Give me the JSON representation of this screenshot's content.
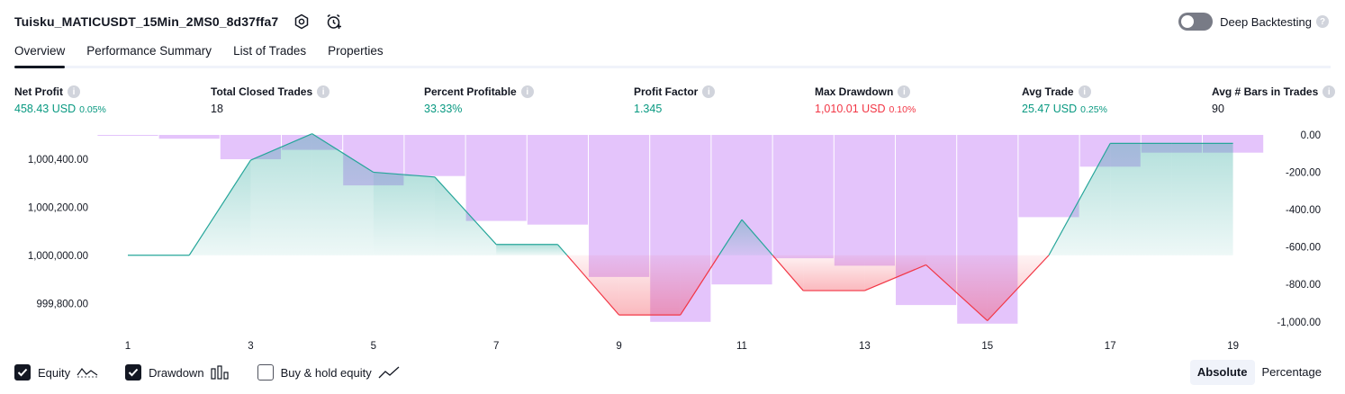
{
  "header": {
    "strategy_title": "Tuisku_MATICUSDT_15Min_2MS0_8d37ffa7",
    "settings_icon": "gear-icon",
    "alert_icon": "alarm-clock-plus-icon"
  },
  "deep_backtesting": {
    "label": "Deep Backtesting",
    "enabled": false
  },
  "tabs": [
    {
      "label": "Overview",
      "active": true
    },
    {
      "label": "Performance Summary",
      "active": false
    },
    {
      "label": "List of Trades",
      "active": false
    },
    {
      "label": "Properties",
      "active": false
    }
  ],
  "metrics": {
    "net_profit": {
      "label": "Net Profit",
      "value": "458.43 USD",
      "pct": "0.05%"
    },
    "total_closed_trades": {
      "label": "Total Closed Trades",
      "value": "18"
    },
    "percent_profitable": {
      "label": "Percent Profitable",
      "value": "33.33%"
    },
    "profit_factor": {
      "label": "Profit Factor",
      "value": "1.345"
    },
    "max_drawdown": {
      "label": "Max Drawdown",
      "value": "1,010.01 USD",
      "pct": "0.10%"
    },
    "avg_trade": {
      "label": "Avg Trade",
      "value": "25.47 USD",
      "pct": "0.25%"
    },
    "avg_bars": {
      "label": "Avg # Bars in Trades",
      "value": "90"
    }
  },
  "chart_data": {
    "type": "line",
    "x": [
      1,
      2,
      3,
      4,
      5,
      6,
      7,
      8,
      9,
      10,
      11,
      12,
      13,
      14,
      15,
      16,
      17,
      18,
      19
    ],
    "x_ticks": [
      "1",
      "3",
      "5",
      "7",
      "9",
      "11",
      "13",
      "15",
      "17",
      "19"
    ],
    "left_axis": {
      "ylim": [
        999700,
        1000500
      ],
      "ticks": [
        "1,000,400.00",
        "1,000,200.00",
        "1,000,000.00",
        "999,800.00"
      ],
      "tick_values": [
        1000400,
        1000200,
        1000000,
        999800
      ]
    },
    "right_axis": {
      "ylim": [
        -1030,
        0
      ],
      "ticks": [
        "0.00",
        "-200.00",
        "-400.00",
        "-600.00",
        "-800.00",
        "-1,000.00"
      ],
      "tick_values": [
        0,
        -200,
        -400,
        -600,
        -800,
        -1000
      ]
    },
    "series": [
      {
        "name": "Equity",
        "axis": "left",
        "values": [
          1000000,
          1000000,
          1000395,
          1000505,
          1000345,
          1000325,
          1000045,
          1000045,
          999752,
          999752,
          1000148,
          999853,
          999853,
          999960,
          999728,
          1000000,
          1000465,
          1000465,
          1000465
        ],
        "color_positive": "#26a69a",
        "color_negative": "#f23645"
      },
      {
        "name": "Drawdown",
        "axis": "right",
        "type": "bar",
        "values": [
          -5,
          -20,
          -130,
          -80,
          -270,
          -220,
          -460,
          -480,
          -760,
          -1000,
          -800,
          -660,
          -700,
          -910,
          -1010,
          -440,
          -170,
          -95,
          -95
        ],
        "color": "#ce93f8"
      }
    ],
    "baseline_equity": 1000000
  },
  "legend": [
    {
      "label": "Equity",
      "checked": true,
      "glyph": "equity-line-icon"
    },
    {
      "label": "Drawdown",
      "checked": true,
      "glyph": "drawdown-bars-icon"
    },
    {
      "label": "Buy & hold equity",
      "checked": false,
      "glyph": "buy-hold-line-icon"
    }
  ],
  "mode": {
    "absolute_label": "Absolute",
    "percentage_label": "Percentage",
    "selected": "Absolute"
  }
}
